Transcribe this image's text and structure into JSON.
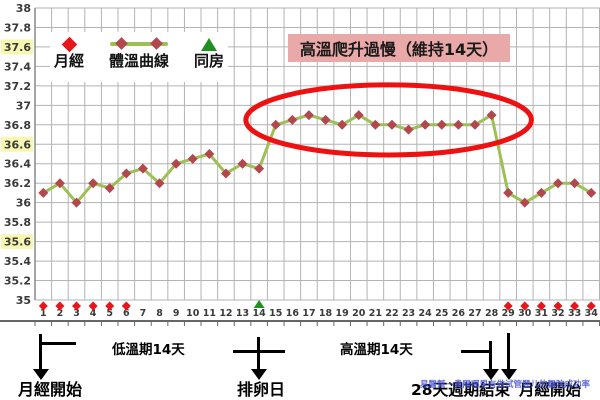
{
  "chart_data": {
    "type": "line",
    "title": "",
    "xlabel": "",
    "ylabel": "",
    "x": [
      1,
      2,
      3,
      4,
      5,
      6,
      7,
      8,
      9,
      10,
      11,
      12,
      13,
      14,
      15,
      16,
      17,
      18,
      19,
      20,
      21,
      22,
      23,
      24,
      25,
      26,
      27,
      28,
      29,
      30,
      31,
      32,
      33,
      34
    ],
    "series": [
      {
        "name": "體溫曲線",
        "values": [
          36.1,
          36.2,
          36.0,
          36.2,
          36.15,
          36.3,
          36.35,
          36.2,
          36.4,
          36.45,
          36.5,
          36.3,
          36.4,
          36.35,
          36.8,
          36.85,
          36.9,
          36.85,
          36.8,
          36.9,
          36.8,
          36.8,
          36.75,
          36.8,
          36.8,
          36.8,
          36.8,
          36.9,
          36.1,
          36.0,
          36.1,
          36.2,
          36.2,
          36.1
        ]
      }
    ],
    "menses_days": [
      1,
      2,
      3,
      4,
      5,
      6,
      29,
      30,
      31,
      32,
      33,
      34
    ],
    "intercourse_days": [
      14
    ],
    "ylim": [
      35,
      38
    ],
    "ytick_step": 0.2,
    "highlighted_yticks": [
      37.6,
      36.6,
      35.6
    ],
    "grid": true,
    "legend_position": "top-left",
    "ellipse_annotation": {
      "day": 21.8,
      "temp": 36.85,
      "rx_days": 8.6,
      "ry_temp": 0.36
    }
  },
  "legend": {
    "items": [
      {
        "label": "月經",
        "marker": "red-diamond"
      },
      {
        "label": "體溫曲線",
        "marker": "line-with-diamonds"
      },
      {
        "label": "同房",
        "marker": "green-triangle"
      }
    ]
  },
  "annotations": {
    "title_box": "高溫爬升過慢（維持14天）",
    "bottom": [
      {
        "label": "月經開始"
      },
      {
        "label": "低溫期14天"
      },
      {
        "label": "排卵日"
      },
      {
        "label": "高溫期14天"
      },
      {
        "label": "28天週期結束"
      },
      {
        "label": "月經開始"
      }
    ],
    "watermark": "易醫幫－貴陽哪里有做试管嬰儿的醫院成功率"
  },
  "colors": {
    "temp_line": "#9dc054",
    "temp_marker": "#b2484e",
    "menses_marker": "#e8151a",
    "intercourse_marker": "#1f9021",
    "ellipse": "#ee1111",
    "title_box_bg": "#e9a9a8",
    "grid": "#b3b3b3",
    "axis": "#888888",
    "border": "#666666",
    "tick_highlight": "#f7f7b2",
    "tick_text": "#3a3a3a"
  }
}
